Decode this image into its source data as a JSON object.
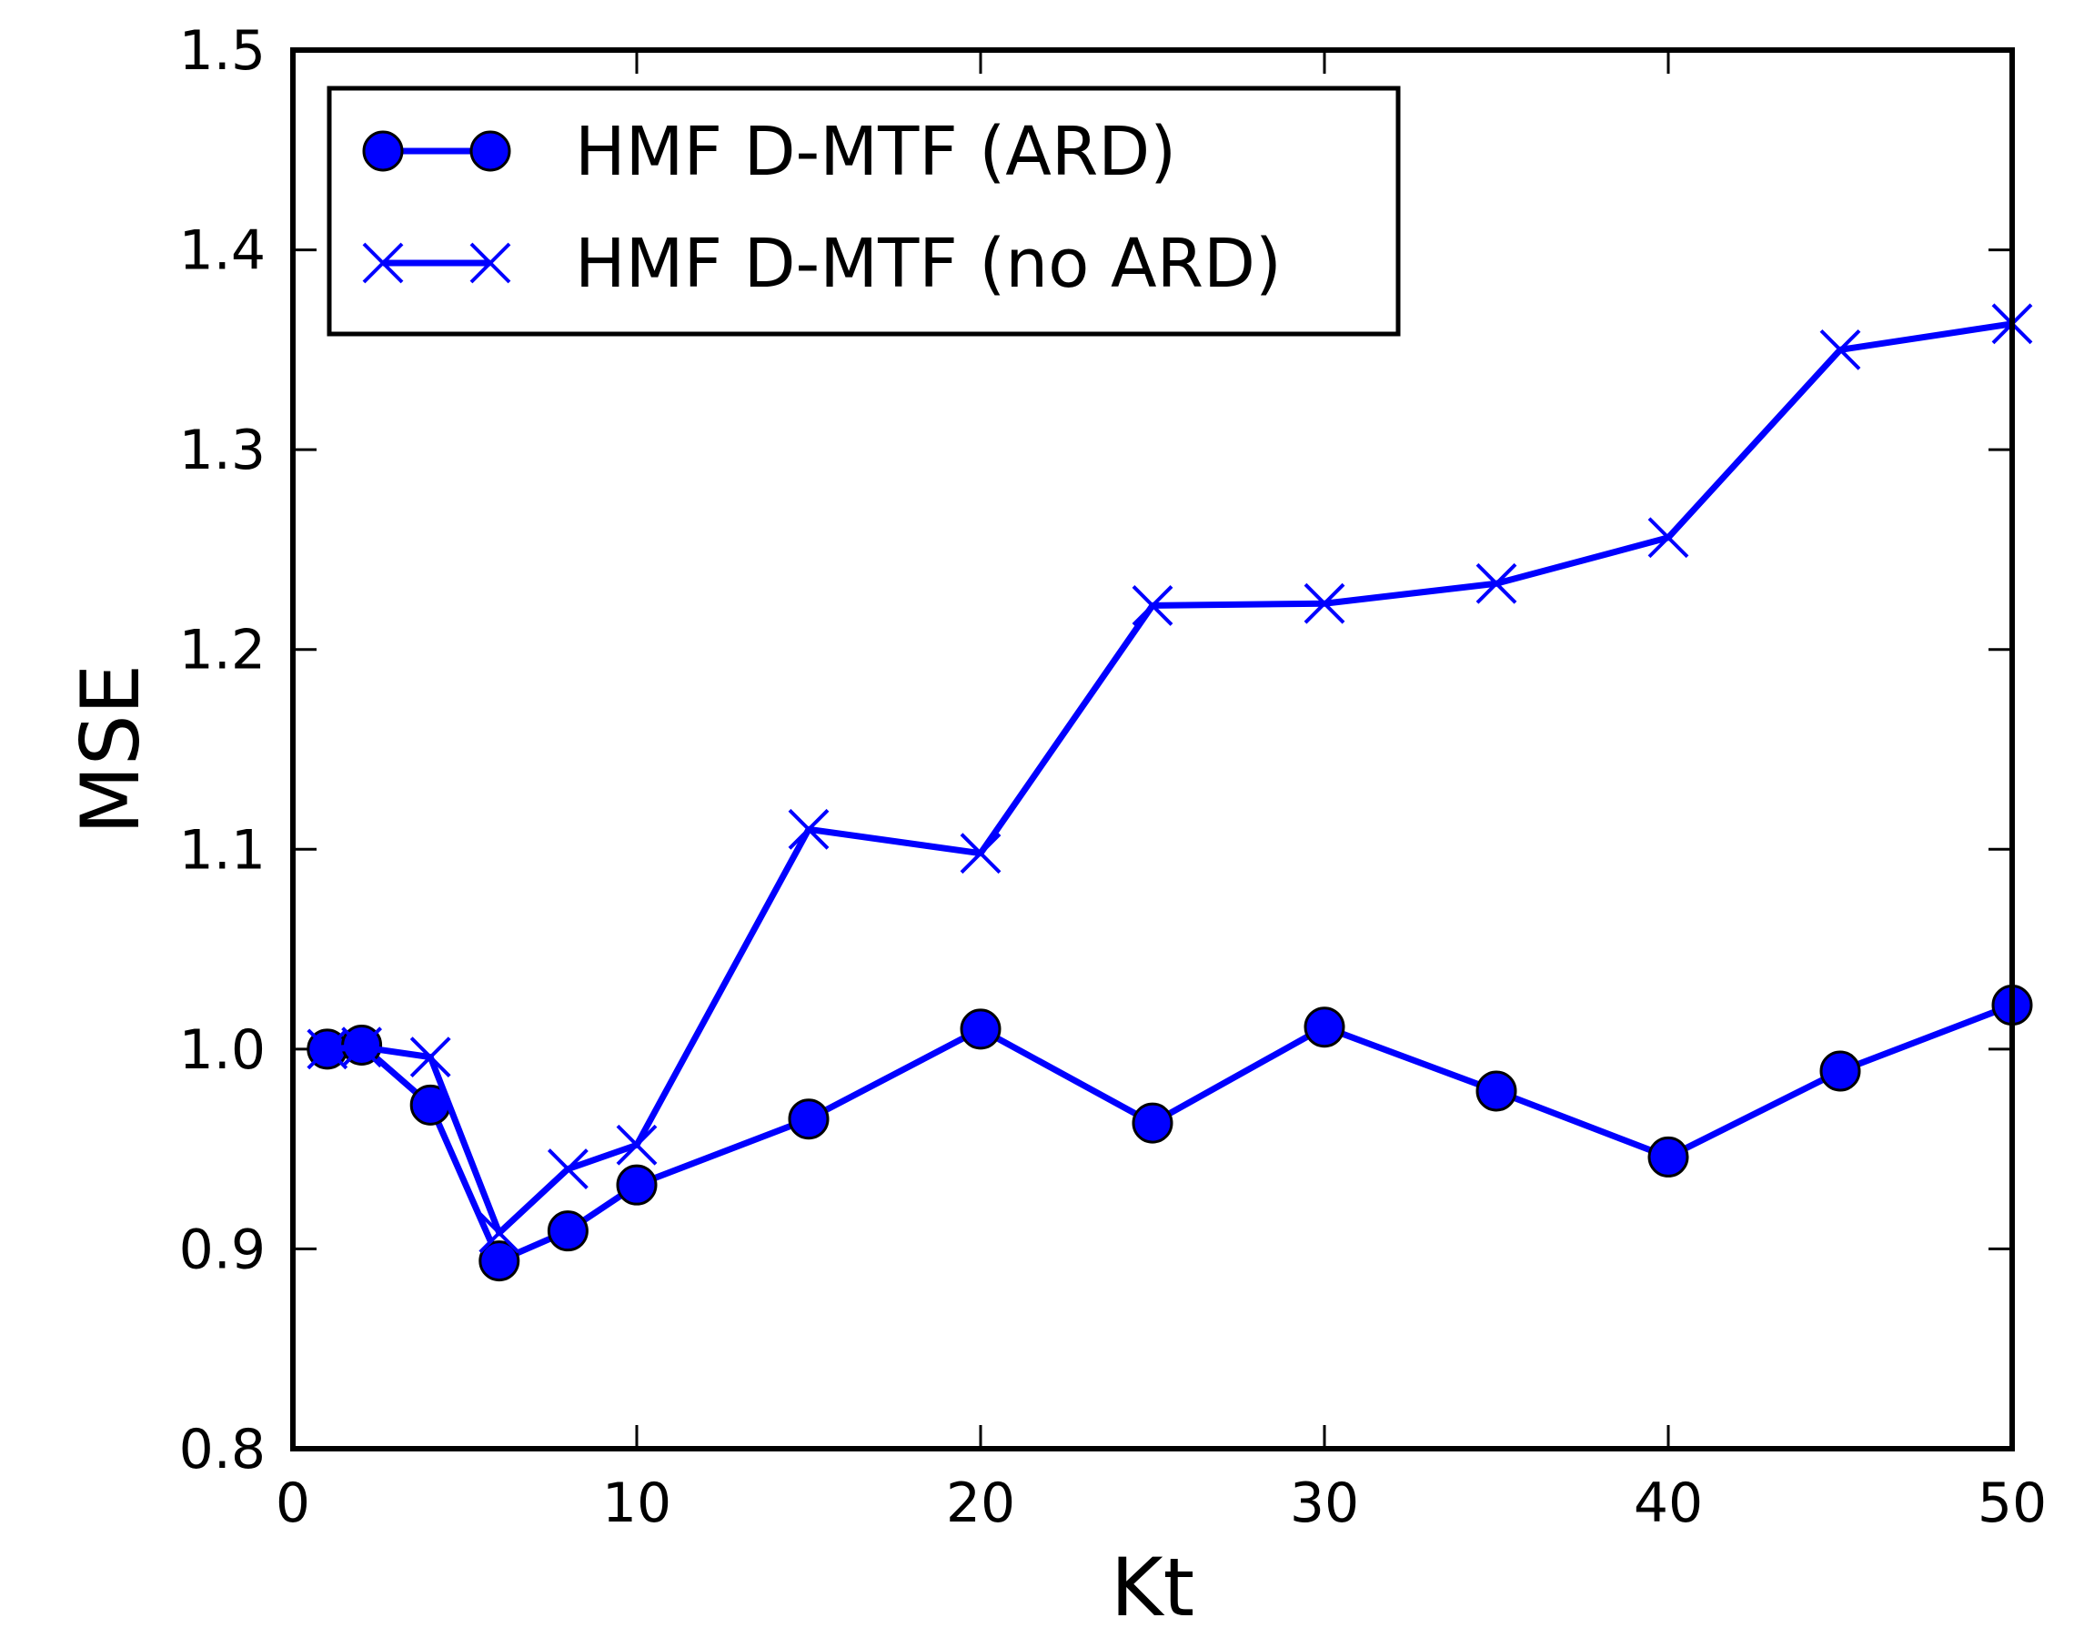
{
  "chart_data": {
    "type": "line",
    "xlabel": "Kt",
    "ylabel": "MSE",
    "xlim": [
      0,
      50
    ],
    "ylim": [
      0.8,
      1.5
    ],
    "xticks": [
      0,
      10,
      20,
      30,
      40,
      50
    ],
    "yticks": [
      0.8,
      0.9,
      1.0,
      1.1,
      1.2,
      1.3,
      1.4,
      1.5
    ],
    "ytick_labels": [
      "0.8",
      "0.9",
      "1.0",
      "1.1",
      "1.2",
      "1.3",
      "1.4",
      "1.5"
    ],
    "grid": false,
    "legend_position": "top-left",
    "series": [
      {
        "name": "HMF D-MTF (ARD)",
        "marker": "circle",
        "color": "#0000ff",
        "x": [
          1,
          2,
          4,
          6,
          8,
          10,
          15,
          20,
          25,
          30,
          35,
          40,
          45,
          50
        ],
        "y": [
          1.0,
          1.002,
          0.972,
          0.894,
          0.909,
          0.932,
          0.965,
          1.01,
          0.963,
          1.011,
          0.979,
          0.946,
          0.989,
          1.022
        ]
      },
      {
        "name": "HMF D-MTF (no ARD)",
        "marker": "x",
        "color": "#0000ff",
        "x": [
          1,
          2,
          4,
          6,
          8,
          10,
          15,
          20,
          25,
          30,
          35,
          40,
          45,
          50
        ],
        "y": [
          1.0,
          1.001,
          0.996,
          0.908,
          0.94,
          0.952,
          1.11,
          1.098,
          1.222,
          1.223,
          1.233,
          1.256,
          1.35,
          1.363
        ]
      }
    ]
  }
}
